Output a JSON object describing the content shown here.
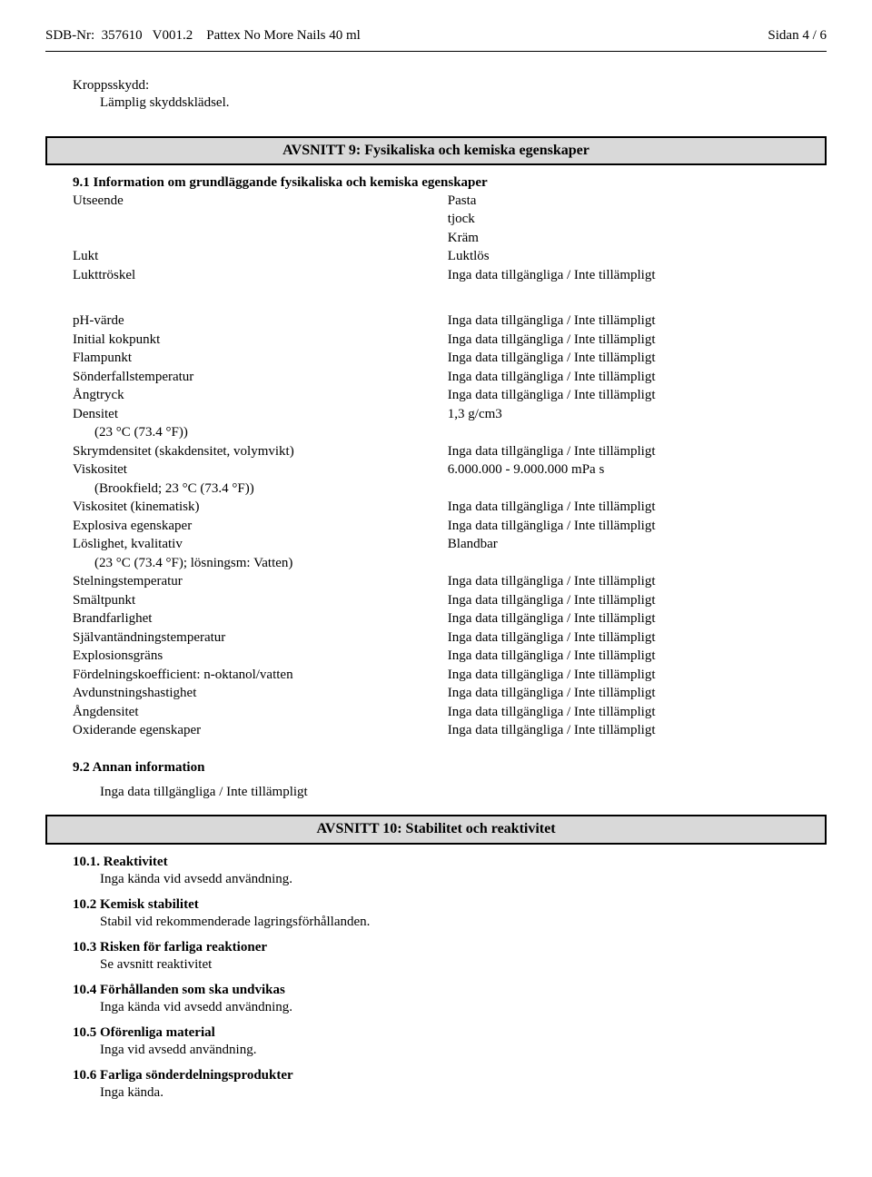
{
  "header": {
    "left": "SDB-Nr:  357610   V001.2    Pattex No More Nails 40 ml",
    "right": "Sidan 4 / 6"
  },
  "bodyProtect": {
    "label": "Kroppsskydd:",
    "value": "Lämplig skyddsklädsel."
  },
  "section9": {
    "banner": "AVSNITT 9: Fysikaliska och kemiska egenskaper",
    "sub91": "9.1 Information om grundläggande fysikaliska och kemiska egenskaper",
    "appearance": {
      "key": "Utseende",
      "v1": "Pasta",
      "v2": "tjock",
      "v3": "Kräm"
    },
    "smell": {
      "key": "Lukt",
      "val": "Luktlös"
    },
    "odorThreshold": {
      "key": "Lukttröskel",
      "val": "Inga data tillgängliga / Inte tillämpligt"
    },
    "rows": [
      {
        "key": "pH-värde",
        "val": "Inga data tillgängliga / Inte tillämpligt"
      },
      {
        "key": "Initial kokpunkt",
        "val": "Inga data tillgängliga / Inte tillämpligt"
      },
      {
        "key": "Flampunkt",
        "val": "Inga data tillgängliga / Inte tillämpligt"
      },
      {
        "key": "Sönderfallstemperatur",
        "val": "Inga data tillgängliga / Inte tillämpligt"
      },
      {
        "key": "Ångtryck",
        "val": "Inga data tillgängliga / Inte tillämpligt"
      },
      {
        "key": "Densitet",
        "val": "1,3 g/cm3",
        "sub": "(23 °C (73.4 °F))"
      },
      {
        "key": "Skrymdensitet (skakdensitet, volymvikt)",
        "val": "Inga data tillgängliga / Inte tillämpligt"
      },
      {
        "key": "Viskositet",
        "val": "6.000.000 - 9.000.000 mPa s",
        "sub": "(Brookfield; 23 °C (73.4 °F))"
      },
      {
        "key": "Viskositet (kinematisk)",
        "val": "Inga data tillgängliga / Inte tillämpligt"
      },
      {
        "key": "Explosiva egenskaper",
        "val": "Inga data tillgängliga / Inte tillämpligt"
      },
      {
        "key": "Löslighet, kvalitativ",
        "val": "Blandbar",
        "sub": "(23 °C (73.4 °F); lösningsm: Vatten)"
      },
      {
        "key": "Stelningstemperatur",
        "val": "Inga data tillgängliga / Inte tillämpligt"
      },
      {
        "key": "Smältpunkt",
        "val": "Inga data tillgängliga / Inte tillämpligt"
      },
      {
        "key": "Brandfarlighet",
        "val": "Inga data tillgängliga / Inte tillämpligt"
      },
      {
        "key": "Självantändningstemperatur",
        "val": "Inga data tillgängliga / Inte tillämpligt"
      },
      {
        "key": "Explosionsgräns",
        "val": "Inga data tillgängliga / Inte tillämpligt"
      },
      {
        "key": "Fördelningskoefficient: n-oktanol/vatten",
        "val": "Inga data tillgängliga / Inte tillämpligt"
      },
      {
        "key": "Avdunstningshastighet",
        "val": "Inga data tillgängliga / Inte tillämpligt"
      },
      {
        "key": "Ångdensitet",
        "val": "Inga data tillgängliga / Inte tillämpligt"
      },
      {
        "key": "Oxiderande egenskaper",
        "val": "Inga data tillgängliga / Inte tillämpligt"
      }
    ],
    "sub92": "9.2 Annan information",
    "sub92body": "Inga data tillgängliga / Inte tillämpligt"
  },
  "section10": {
    "banner": "AVSNITT 10: Stabilitet och reaktivitet",
    "items": [
      {
        "head": "10.1. Reaktivitet",
        "body": "Inga kända vid avsedd användning."
      },
      {
        "head": "10.2 Kemisk stabilitet",
        "body": "Stabil vid rekommenderade lagringsförhållanden."
      },
      {
        "head": "10.3 Risken för farliga reaktioner",
        "body": "Se avsnitt reaktivitet"
      },
      {
        "head": "10.4 Förhållanden som ska undvikas",
        "body": "Inga kända vid avsedd användning."
      },
      {
        "head": "10.5 Oförenliga material",
        "body": "Inga vid avsedd användning."
      },
      {
        "head": "10.6 Farliga sönderdelningsprodukter",
        "body": "Inga kända."
      }
    ]
  }
}
